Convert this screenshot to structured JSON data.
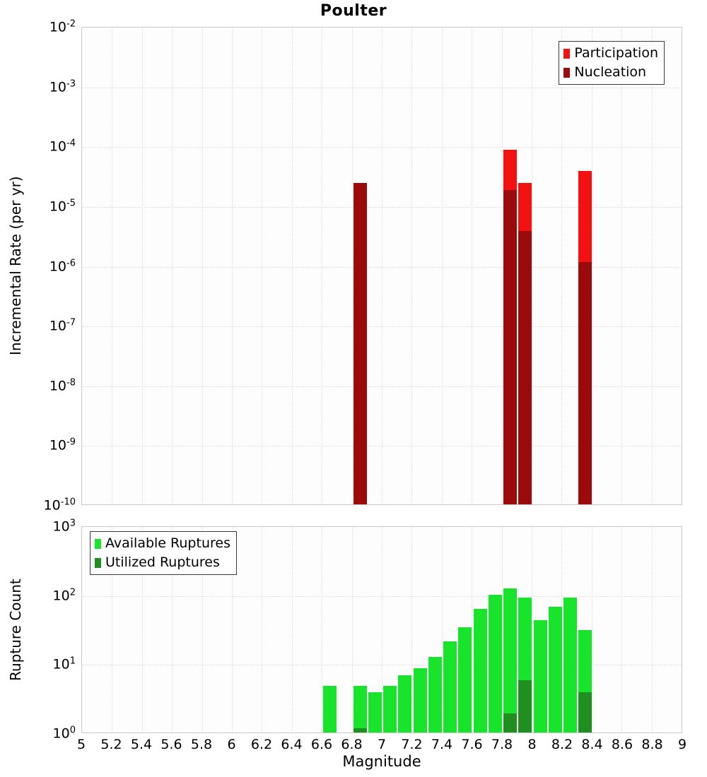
{
  "title": "Poulter",
  "x_axis": {
    "label": "Magnitude",
    "min": 5,
    "max": 9,
    "grid_step": 0.2,
    "tick_labels": [
      "5",
      "5.2",
      "5.4",
      "5.6",
      "5.8",
      "6",
      "6.2",
      "6.4",
      "6.6",
      "6.8",
      "7",
      "7.2",
      "7.4",
      "7.6",
      "7.8",
      "8",
      "8.2",
      "8.4",
      "8.6",
      "8.8",
      "9"
    ]
  },
  "colors": {
    "participation": "#f31111",
    "nucleation": "#9c0b0b",
    "available": "#17e42b",
    "utilized": "#1f8f1f",
    "grid": "#dcdcdc",
    "plot_border": "#c9c9c9"
  },
  "chart_data": [
    {
      "type": "bar",
      "panel": "incremental-rate",
      "ylabel": "Incremental Rate (per yr)",
      "yscale": "log",
      "ylim": [
        1e-10,
        0.01
      ],
      "y_tick_exponents": [
        -2,
        -3,
        -4,
        -5,
        -6,
        -7,
        -8,
        -9,
        -10
      ],
      "xlim": [
        5,
        9
      ],
      "bin_width": 0.1,
      "grid": true,
      "legend": {
        "position": "top-right",
        "entries": [
          {
            "label": "Participation",
            "color_key": "participation"
          },
          {
            "label": "Nucleation",
            "color_key": "nucleation"
          }
        ]
      },
      "series": [
        {
          "name": "Participation",
          "color_key": "participation",
          "x": [
            6.85,
            7.85,
            7.95,
            8.35
          ],
          "values": [
            2.5e-05,
            9e-05,
            2.5e-05,
            4e-05
          ]
        },
        {
          "name": "Nucleation",
          "color_key": "nucleation",
          "x": [
            6.85,
            7.85,
            7.95,
            8.35
          ],
          "values": [
            2.5e-05,
            1.9e-05,
            4e-06,
            1.2e-06
          ]
        }
      ]
    },
    {
      "type": "bar",
      "panel": "rupture-count",
      "ylabel": "Rupture Count",
      "yscale": "log",
      "ylim": [
        1,
        1000
      ],
      "y_tick_exponents": [
        3,
        2,
        1,
        0
      ],
      "xlim": [
        5,
        9
      ],
      "bin_width": 0.1,
      "grid": true,
      "legend": {
        "position": "top-left",
        "entries": [
          {
            "label": "Available Ruptures",
            "color_key": "available"
          },
          {
            "label": "Utilized Ruptures",
            "color_key": "utilized"
          }
        ]
      },
      "series": [
        {
          "name": "Available Ruptures",
          "color_key": "available",
          "x": [
            6.65,
            6.85,
            6.95,
            7.05,
            7.15,
            7.25,
            7.35,
            7.45,
            7.55,
            7.65,
            7.75,
            7.85,
            7.95,
            8.05,
            8.15,
            8.25,
            8.35
          ],
          "values": [
            5,
            5,
            4,
            5,
            7,
            9,
            13,
            22,
            35,
            65,
            105,
            130,
            95,
            45,
            70,
            95,
            32
          ]
        },
        {
          "name": "Utilized Ruptures",
          "color_key": "utilized",
          "x": [
            6.85,
            7.85,
            7.95,
            8.35
          ],
          "values": [
            1,
            2,
            6,
            4
          ]
        }
      ]
    }
  ]
}
